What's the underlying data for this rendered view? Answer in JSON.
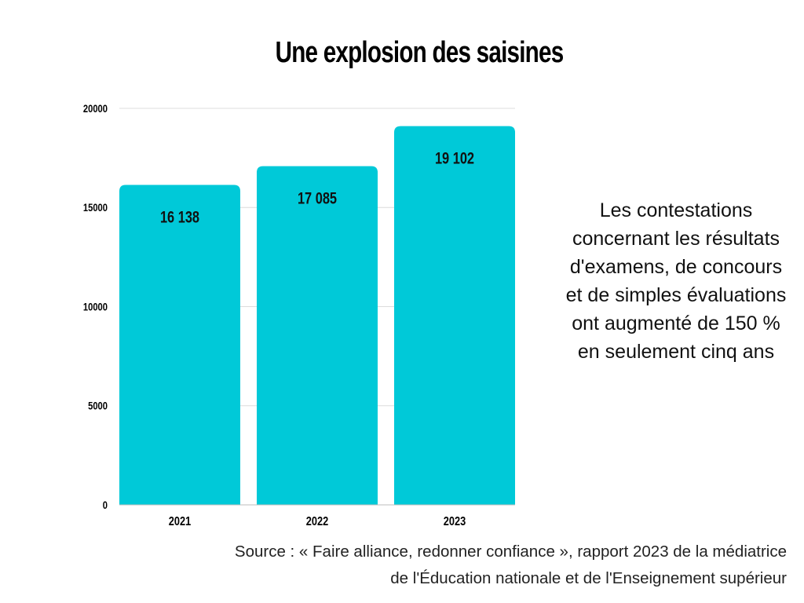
{
  "chart_data": {
    "type": "bar",
    "title": "Une explosion des saisines",
    "categories": [
      "2021",
      "2022",
      "2023"
    ],
    "values": [
      16138,
      17085,
      19102
    ],
    "value_labels": [
      "16 138",
      "17 085",
      "19 102"
    ],
    "y_ticks": [
      0,
      5000,
      10000,
      15000,
      20000
    ],
    "ylim": [
      0,
      20000
    ],
    "grid": true,
    "bar_color": "#00C9D8",
    "grid_color": "#dcdcdc"
  },
  "side_note": "Les contestations concernant les résultats d'examens, de concours et de simples évaluations ont augmenté de 150 % en seulement cinq ans",
  "source_note": "Source : « Faire alliance, redonner confiance », rapport 2023 de la médiatrice de l'Éducation nationale et de l'Enseignement supérieur"
}
